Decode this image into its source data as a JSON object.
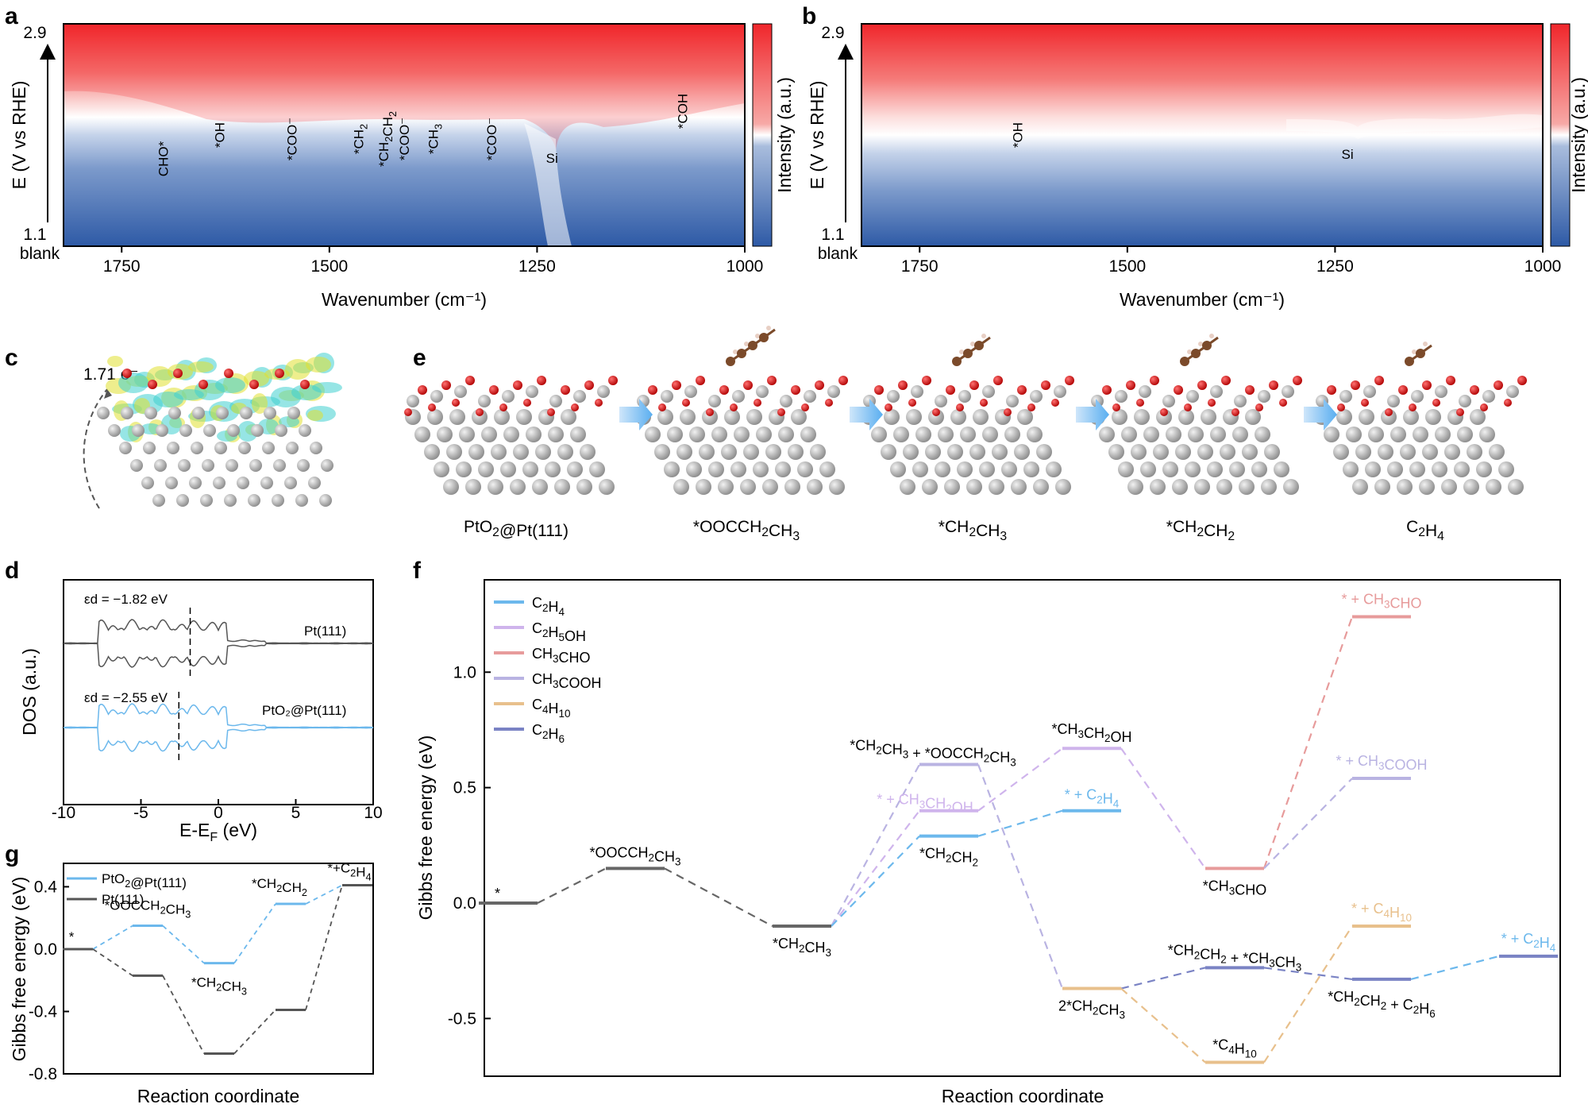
{
  "panels": {
    "a": "a",
    "b": "b",
    "c": "c",
    "d": "d",
    "e": "e",
    "f": "f",
    "g": "g"
  },
  "colors": {
    "red": "#f0262b",
    "white": "#ffffff",
    "blue": "#2e5aa6",
    "c2h4": "#6cb8ec",
    "c2h5oh": "#cfb4ec",
    "ch3cho": "#e79b9b",
    "ch3cooh": "#b9b3e2",
    "c4h10": "#e8c08c",
    "c2h6": "#7a83c4",
    "pt": "#555555",
    "pt_atom": "#b8b8b8",
    "o_atom": "#d32020",
    "c_atom": "#7b4a2a",
    "h_atom": "#e8cfc4"
  },
  "ir": {
    "ylabel": "E (V vs RHE)",
    "ytop": "2.9",
    "ybottom": "1.1",
    "blank": "blank",
    "xlabel": "Wavenumber (cm⁻¹)",
    "cbar_label": "Intensity (a.u.)"
  },
  "panel_c": {
    "charge": "1.71 e⁻"
  },
  "panel_e": {
    "captions": [
      "PtO₂@Pt(111)",
      "*OOCCH₂CH₃",
      "*CH₂CH₃",
      "*CH₂CH₂",
      "C₂H₄"
    ]
  },
  "chart_data": [
    {
      "id": "a",
      "type": "heatmap",
      "xlabel": "Wavenumber (cm⁻¹)",
      "ylabel": "E (V vs RHE)",
      "xlim": [
        1820,
        1000
      ],
      "ylim": [
        1.1,
        2.9
      ],
      "xticks": [
        1750,
        1500,
        1250,
        1000
      ],
      "colorbar": "Intensity (a.u.)",
      "annotations": [
        {
          "x": 1700,
          "label": "CHO*"
        },
        {
          "x": 1632,
          "label": "*OH"
        },
        {
          "x": 1545,
          "label": "*COO⁻"
        },
        {
          "x": 1465,
          "label": "*CH₂"
        },
        {
          "x": 1435,
          "label": "*CH₂CH₂"
        },
        {
          "x": 1410,
          "label": "*COO⁻"
        },
        {
          "x": 1375,
          "label": "*CH₃"
        },
        {
          "x": 1305,
          "label": "*COO⁻"
        },
        {
          "x": 1232,
          "label": "Si"
        },
        {
          "x": 1075,
          "label": "*COH"
        }
      ]
    },
    {
      "id": "b",
      "type": "heatmap",
      "xlabel": "Wavenumber (cm⁻¹)",
      "ylabel": "E (V vs RHE)",
      "xlim": [
        1820,
        1000
      ],
      "ylim": [
        1.1,
        2.9
      ],
      "xticks": [
        1750,
        1500,
        1250,
        1000
      ],
      "colorbar": "Intensity (a.u.)",
      "annotations": [
        {
          "x": 1632,
          "label": "*OH"
        },
        {
          "x": 1235,
          "label": "Si"
        }
      ]
    },
    {
      "id": "d",
      "type": "line",
      "xlabel": "E-Eₒ",
      "xlabel_main": "E-E",
      "xlabel_sub": "F",
      "xlabel_unit": " (eV)",
      "ylabel": "DOS (a.u.)",
      "xlim": [
        -10,
        10
      ],
      "xticks": [
        -10,
        -5,
        0,
        5,
        10
      ],
      "series": [
        {
          "name": "Pt(111)",
          "d_band_center_label": "εd = −1.82 eV",
          "d_band_center": -1.82
        },
        {
          "name": "PtO₂@Pt(111)",
          "d_band_center_label": "εd = −2.55 eV",
          "d_band_center": -2.55
        }
      ]
    },
    {
      "id": "f",
      "type": "line",
      "xlabel": "Reaction coordinate",
      "ylabel": "Gibbs free energy (eV)",
      "ylim": [
        -0.75,
        1.4
      ],
      "yticks": [
        -0.5,
        0.0,
        0.5,
        1.0
      ],
      "legend": [
        "C₂H₄",
        "C₂H₅OH",
        "CH₃CHO",
        "CH₃COOH",
        "C₄H₁₀",
        "C₂H₆"
      ],
      "levels": [
        {
          "label": "*",
          "x": 0,
          "y": 0.0,
          "series": "common"
        },
        {
          "label": "*OOCCH₂CH₃",
          "x": 1,
          "y": 0.15,
          "series": "common"
        },
        {
          "label": "*CH₂CH₃",
          "x": 2,
          "y": -0.1,
          "series": "common"
        },
        {
          "label": "*CH₂CH₃ + *OOCCH₂CH₃",
          "x": 3,
          "y": 0.6,
          "series": "CH₃COOH"
        },
        {
          "label": "* + CH₃CH₂OH",
          "x": 3,
          "y": 0.4,
          "series": "C₂H₅OH"
        },
        {
          "label": "*CH₂CH₂",
          "x": 3,
          "y": 0.29,
          "series": "C₂H₄"
        },
        {
          "label": "*CH₃CH₂OH",
          "x": 4,
          "y": 0.67,
          "series": "C₂H₅OH"
        },
        {
          "label": "* + C₂H₄",
          "x": 4,
          "y": 0.4,
          "series": "C₂H₄"
        },
        {
          "label": "2*CH₂CH₃",
          "x": 4,
          "y": -0.37,
          "series": "C₄H₁₀"
        },
        {
          "label": "*CH₃CHO",
          "x": 5,
          "y": 0.15,
          "series": "CH₃CHO"
        },
        {
          "label": "*CH₂CH₂ + *CH₃CH₃",
          "x": 5,
          "y": -0.28,
          "series": "C₂H₆"
        },
        {
          "label": "*C₄H₁₀",
          "x": 5,
          "y": -0.69,
          "series": "C₄H₁₀"
        },
        {
          "label": "* + CH₃CHO",
          "x": 6,
          "y": 1.24,
          "series": "CH₃CHO"
        },
        {
          "label": "* + CH₃COOH",
          "x": 6,
          "y": 0.54,
          "series": "CH₃COOH"
        },
        {
          "label": "* + C₄H₁₀",
          "x": 6,
          "y": -0.1,
          "series": "C₄H₁₀"
        },
        {
          "label": "*CH₂CH₂ + C₂H₆",
          "x": 6,
          "y": -0.33,
          "series": "C₂H₆"
        },
        {
          "label": "* + C₂H₄",
          "x": 7,
          "y": -0.23,
          "series": "C₂H₆"
        }
      ]
    },
    {
      "id": "g",
      "type": "line",
      "xlabel": "Reaction coordinate",
      "ylabel": "Gibbs free energy (eV)",
      "ylim": [
        -0.8,
        0.55
      ],
      "yticks": [
        -0.8,
        -0.4,
        0.0,
        0.4
      ],
      "series": [
        {
          "name": "PtO₂@Pt(111)",
          "values": [
            0.0,
            0.15,
            -0.09,
            0.29,
            0.41
          ]
        },
        {
          "name": "Pt(111)",
          "values": [
            0.0,
            -0.17,
            -0.67,
            -0.39,
            0.41
          ]
        }
      ],
      "labels": [
        "*",
        "*OOCCH₂CH₃",
        "*CH₂CH₃",
        "*CH₂CH₂",
        "*+C₂H₄"
      ]
    }
  ]
}
